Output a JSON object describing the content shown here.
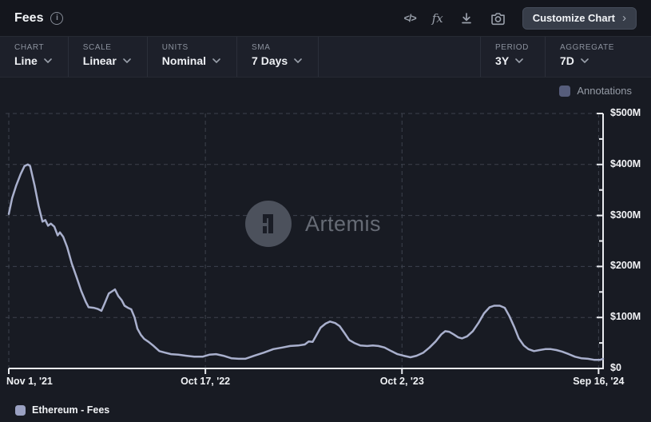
{
  "header": {
    "title": "Fees",
    "info_icon": "i",
    "code_icon_label": "</>",
    "fx_icon_label": "fx",
    "customize_button_label": "Customize Chart",
    "customize_button_chevron": "›"
  },
  "toolbar": {
    "left": [
      {
        "label": "CHART",
        "value": "Line"
      },
      {
        "label": "SCALE",
        "value": "Linear"
      },
      {
        "label": "UNITS",
        "value": "Nominal"
      },
      {
        "label": "SMA",
        "value": "7 Days"
      }
    ],
    "right": [
      {
        "label": "PERIOD",
        "value": "3Y"
      },
      {
        "label": "AGGREGATE",
        "value": "7D"
      }
    ]
  },
  "annotations_toggle": {
    "label": "Annotations",
    "checked": false
  },
  "watermark": {
    "text": "Artemis"
  },
  "legend": [
    {
      "label": "Ethereum - Fees",
      "color": "#9aa1c2"
    }
  ],
  "colors": {
    "line": "#a9b0cd",
    "legend_swatch": "#9aa1c2",
    "axis": "#e9ebef",
    "grid": "#3d424d",
    "page_bg": "#181b23",
    "header_bg": "#14161d",
    "toolbar_bg": "#1d202a",
    "button_bg": "#373d49"
  },
  "chart_data": {
    "type": "line",
    "title": "Fees",
    "xlabel": "",
    "ylabel": "",
    "grid": "dashed",
    "legend_position": "bottom-left",
    "x_axis": {
      "tick_labels": [
        "Nov 1, '21",
        "Oct 17, '22",
        "Oct 2, '23",
        "Sep 16, '24"
      ],
      "tick_days": [
        0,
        350,
        700,
        1050
      ],
      "max_day": 1058
    },
    "y_axis": {
      "min": 0,
      "max": 500,
      "major_step": 100,
      "minor_step": 50,
      "unit": "$M",
      "tick_labels": [
        "$0",
        "$100M",
        "$200M",
        "$300M",
        "$400M",
        "$500M"
      ]
    },
    "series": [
      {
        "name": "Ethereum - Fees",
        "unit": "$M (millions USD, 7-day SMA)",
        "color": "#a9b0cd",
        "days": [
          0,
          6,
          13,
          21,
          28,
          34,
          38,
          46,
          53,
          60,
          65,
          70,
          75,
          81,
          87,
          91,
          97,
          104,
          112,
          121,
          129,
          137,
          142,
          151,
          158,
          165,
          171,
          178,
          185,
          189,
          195,
          201,
          206,
          212,
          218,
          224,
          229,
          235,
          241,
          249,
          258,
          268,
          278,
          289,
          302,
          316,
          330,
          345,
          357,
          369,
          382,
          396,
          409,
          421,
          437,
          454,
          471,
          487,
          501,
          515,
          527,
          534,
          541,
          548,
          555,
          564,
          572,
          581,
          589,
          598,
          606,
          615,
          626,
          638,
          648,
          658,
          669,
          681,
          692,
          703,
          715,
          726,
          738,
          749,
          760,
          770,
          777,
          784,
          792,
          800,
          807,
          816,
          826,
          836,
          846,
          856,
          864,
          874,
          883,
          891,
          900,
          908,
          917,
          925,
          935,
          945,
          955,
          965,
          975,
          985,
          997,
          1008,
          1019,
          1031,
          1042,
          1053,
          1058
        ],
        "values": [
          303,
          334,
          358,
          381,
          397,
          400,
          397,
          359,
          319,
          288,
          291,
          280,
          284,
          278,
          261,
          267,
          258,
          238,
          206,
          178,
          152,
          131,
          120,
          119,
          117,
          113,
          128,
          147,
          152,
          155,
          142,
          134,
          123,
          119,
          116,
          100,
          78,
          66,
          58,
          52,
          44,
          34,
          31,
          28,
          27,
          25,
          23,
          23,
          27,
          28,
          25,
          20,
          19,
          19,
          25,
          31,
          38,
          41,
          44,
          45,
          47,
          53,
          52,
          66,
          80,
          88,
          92,
          89,
          83,
          69,
          56,
          50,
          45,
          44,
          45,
          44,
          41,
          34,
          28,
          25,
          22,
          25,
          31,
          41,
          53,
          67,
          73,
          72,
          67,
          61,
          59,
          63,
          73,
          89,
          108,
          120,
          123,
          123,
          119,
          103,
          81,
          59,
          45,
          38,
          34,
          36,
          38,
          38,
          36,
          33,
          28,
          23,
          20,
          19,
          17,
          17,
          19
        ]
      }
    ]
  }
}
